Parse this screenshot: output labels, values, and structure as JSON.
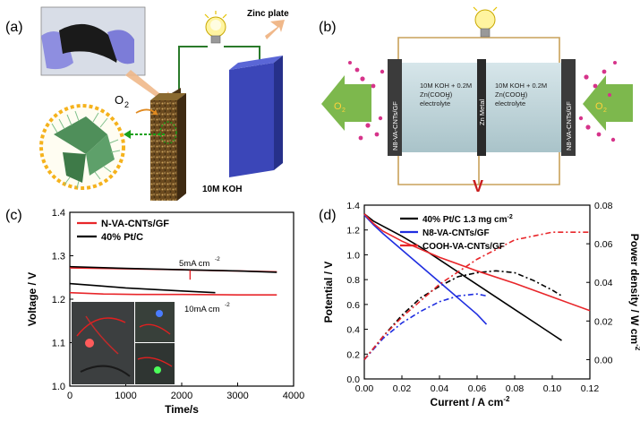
{
  "panels": {
    "a": {
      "label": "(a)",
      "zinc_plate_label": "Zinc plate",
      "electrolyte_label": "10M KOH",
      "oxygen_label": "O",
      "oxygen_subscript": "2"
    },
    "b": {
      "label": "(b)",
      "left_electrode": "N8-VA-CNTs/GF",
      "right_electrode": "N8-VA-CNTs/GF",
      "center_metal": "Zn Metal",
      "left_electrolyte": [
        "10M KOH + 0.2M",
        "Zn(COOH)",
        "electrolyte"
      ],
      "right_electrolyte": [
        "10M KOH + 0.2M",
        "Zn(COOH)",
        "electrolyte"
      ],
      "electrolyte_sub": "2",
      "o2_left": "O",
      "o2_right": "O",
      "o2_sub": "2",
      "voltmeter": "V"
    },
    "c": {
      "label": "(c)",
      "annotation_5ma": "5mA cm",
      "annotation_10ma": "10mA cm",
      "annotation_exp": "-2"
    },
    "d": {
      "label": "(d)"
    }
  },
  "chart_data": [
    {
      "id": "c",
      "type": "line",
      "xlabel": "Time/s",
      "ylabel": "Voltage / V",
      "xlim": [
        0,
        4000
      ],
      "ylim": [
        1.0,
        1.4
      ],
      "xticks": [
        0,
        1000,
        2000,
        3000,
        4000
      ],
      "yticks": [
        1.0,
        1.1,
        1.2,
        1.3,
        1.4
      ],
      "legend_position": "top-left",
      "series": [
        {
          "name": "N-VA-CNTs/GF",
          "color": "#e8262a",
          "segments": [
            {
              "x": [
                0,
                1000,
                2000,
                2150,
                3000,
                3700
              ],
              "y": [
                1.272,
                1.27,
                1.268,
                1.267,
                1.265,
                1.263
              ]
            },
            {
              "x": [
                0,
                600,
                1200,
                2000,
                3000,
                3700
              ],
              "y": [
                1.215,
                1.212,
                1.211,
                1.211,
                1.21,
                1.21
              ]
            }
          ]
        },
        {
          "name": "40% Pt/C",
          "color": "#000000",
          "segments": [
            {
              "x": [
                0,
                1000,
                2000,
                3000,
                3700
              ],
              "y": [
                1.275,
                1.271,
                1.268,
                1.265,
                1.262
              ]
            },
            {
              "x": [
                0,
                500,
                1000,
                2000,
                2600
              ],
              "y": [
                1.236,
                1.231,
                1.226,
                1.219,
                1.215
              ]
            }
          ]
        }
      ],
      "notch": {
        "x": 2150,
        "y_top": 1.267,
        "y_bottom": 1.245
      }
    },
    {
      "id": "d",
      "type": "line",
      "xlabel": "Current / A cm",
      "xlabel_exp": "-2",
      "ylabel": "Potential / V",
      "ylabel_right": "Power density / W cm",
      "ylabel_right_exp": "-2",
      "xlim": [
        0.0,
        0.12
      ],
      "ylim": [
        0.0,
        1.4
      ],
      "ylim_right": [
        -0.01,
        0.08
      ],
      "xticks": [
        0.0,
        0.02,
        0.04,
        0.06,
        0.08,
        0.1,
        0.12
      ],
      "yticks": [
        0.0,
        0.2,
        0.4,
        0.6,
        0.8,
        1.0,
        1.2,
        1.4
      ],
      "yticks_right": [
        0.0,
        0.02,
        0.04,
        0.06,
        0.08
      ],
      "legend_position": "top",
      "series": [
        {
          "name": "40% Pt/C 1.3 mg cm",
          "name_exp": "-2",
          "color": "#000000",
          "polarization": {
            "x": [
              0,
              0.005,
              0.01,
              0.02,
              0.03,
              0.04,
              0.05,
              0.06,
              0.07,
              0.08,
              0.09,
              0.1,
              0.105
            ],
            "y": [
              1.33,
              1.27,
              1.23,
              1.15,
              1.06,
              0.96,
              0.86,
              0.76,
              0.66,
              0.56,
              0.46,
              0.36,
              0.31
            ]
          },
          "power": {
            "x": [
              0,
              0.01,
              0.02,
              0.03,
              0.04,
              0.05,
              0.06,
              0.07,
              0.08,
              0.09,
              0.1,
              0.105
            ],
            "y": [
              0.0,
              0.012,
              0.023,
              0.032,
              0.038,
              0.043,
              0.045,
              0.046,
              0.045,
              0.041,
              0.036,
              0.033
            ]
          }
        },
        {
          "name": "N8-VA-CNTs/GF",
          "color": "#1f2ee0",
          "polarization": {
            "x": [
              0,
              0.005,
              0.01,
              0.02,
              0.03,
              0.04,
              0.05,
              0.06,
              0.065
            ],
            "y": [
              1.32,
              1.24,
              1.17,
              1.04,
              0.91,
              0.78,
              0.65,
              0.52,
              0.44
            ]
          },
          "power": {
            "x": [
              0,
              0.01,
              0.02,
              0.03,
              0.04,
              0.05,
              0.06,
              0.065
            ],
            "y": [
              0.0,
              0.011,
              0.019,
              0.025,
              0.03,
              0.033,
              0.034,
              0.033
            ]
          }
        },
        {
          "name": "COOH-VA-CNTs/GF",
          "color": "#e8262a",
          "polarization": {
            "x": [
              0,
              0.005,
              0.01,
              0.02,
              0.04,
              0.06,
              0.08,
              0.1,
              0.12
            ],
            "y": [
              1.33,
              1.25,
              1.19,
              1.11,
              0.98,
              0.87,
              0.77,
              0.66,
              0.55
            ]
          },
          "power": {
            "x": [
              0,
              0.01,
              0.02,
              0.04,
              0.06,
              0.08,
              0.1,
              0.12
            ],
            "y": [
              0.0,
              0.012,
              0.022,
              0.039,
              0.052,
              0.062,
              0.066,
              0.066
            ]
          }
        }
      ]
    }
  ]
}
